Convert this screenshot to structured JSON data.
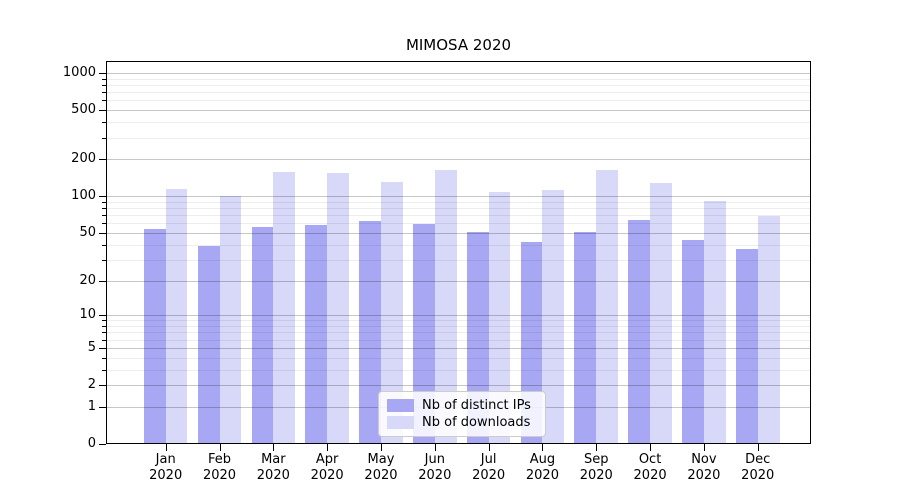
{
  "figure": {
    "title": "MIMOSA 2020"
  },
  "colors": {
    "ips_bar": "#a7a7f3",
    "downloads_bar": "#d8d8f8",
    "major_grid": "rgba(0,0,0,0.22)",
    "minor_grid": "rgba(0,0,0,0.07)",
    "axis": "#000000",
    "legend_border": "#cccccc"
  },
  "chart_data": {
    "type": "bar",
    "title": "MIMOSA 2020",
    "categories": [
      {
        "line1": "Jan",
        "line2": "2020"
      },
      {
        "line1": "Feb",
        "line2": "2020"
      },
      {
        "line1": "Mar",
        "line2": "2020"
      },
      {
        "line1": "Apr",
        "line2": "2020"
      },
      {
        "line1": "May",
        "line2": "2020"
      },
      {
        "line1": "Jun",
        "line2": "2020"
      },
      {
        "line1": "Jul",
        "line2": "2020"
      },
      {
        "line1": "Aug",
        "line2": "2020"
      },
      {
        "line1": "Sep",
        "line2": "2020"
      },
      {
        "line1": "Oct",
        "line2": "2020"
      },
      {
        "line1": "Nov",
        "line2": "2020"
      },
      {
        "line1": "Dec",
        "line2": "2020"
      }
    ],
    "series": [
      {
        "name": "Nb of distinct IPs",
        "values": [
          54,
          39,
          56,
          58,
          63,
          59,
          51,
          42,
          51,
          64,
          44,
          37
        ]
      },
      {
        "name": "Nb of downloads",
        "values": [
          115,
          101,
          158,
          154,
          131,
          162,
          108,
          112,
          162,
          128,
          92,
          69
        ]
      }
    ],
    "xlabel": "",
    "ylabel": "",
    "yscale": "log10(value+1)",
    "yticks": [
      0,
      1,
      2,
      5,
      10,
      20,
      50,
      100,
      200,
      500,
      1000
    ],
    "minor_gridlines": [
      3,
      4,
      6,
      7,
      8,
      9,
      30,
      40,
      60,
      70,
      80,
      90,
      300,
      400,
      600,
      700,
      800,
      900
    ],
    "ylim": [
      0,
      1250
    ],
    "grid": true,
    "legend_position": "lower center"
  }
}
